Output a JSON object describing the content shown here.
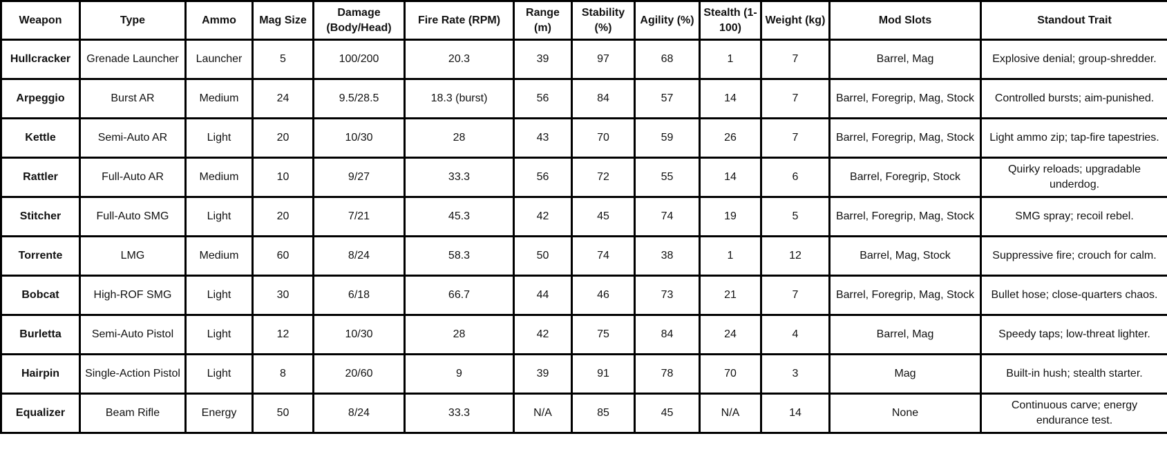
{
  "columns": [
    "Weapon",
    "Type",
    "Ammo",
    "Mag Size",
    "Damage (Body/Head)",
    "Fire Rate (RPM)",
    "Range (m)",
    "Stability (%)",
    "Agility (%)",
    "Stealth (1-100)",
    "Weight (kg)",
    "Mod Slots",
    "Standout Trait"
  ],
  "rows": [
    [
      "Hullcracker",
      "Grenade Launcher",
      "Launcher",
      "5",
      "100/200",
      "20.3",
      "39",
      "97",
      "68",
      "1",
      "7",
      "Barrel, Mag",
      "Explosive denial; group-shredder."
    ],
    [
      "Arpeggio",
      "Burst AR",
      "Medium",
      "24",
      "9.5/28.5",
      "18.3 (burst)",
      "56",
      "84",
      "57",
      "14",
      "7",
      "Barrel, Foregrip, Mag, Stock",
      "Controlled bursts; aim-punished."
    ],
    [
      "Kettle",
      "Semi-Auto AR",
      "Light",
      "20",
      "10/30",
      "28",
      "43",
      "70",
      "59",
      "26",
      "7",
      "Barrel, Foregrip, Mag, Stock",
      "Light ammo zip; tap-fire tapestries."
    ],
    [
      "Rattler",
      "Full-Auto AR",
      "Medium",
      "10",
      "9/27",
      "33.3",
      "56",
      "72",
      "55",
      "14",
      "6",
      "Barrel, Foregrip, Stock",
      "Quirky reloads; upgradable underdog."
    ],
    [
      "Stitcher",
      "Full-Auto SMG",
      "Light",
      "20",
      "7/21",
      "45.3",
      "42",
      "45",
      "74",
      "19",
      "5",
      "Barrel, Foregrip, Mag, Stock",
      "SMG spray; recoil rebel."
    ],
    [
      "Torrente",
      "LMG",
      "Medium",
      "60",
      "8/24",
      "58.3",
      "50",
      "74",
      "38",
      "1",
      "12",
      "Barrel, Mag, Stock",
      "Suppressive fire; crouch for calm."
    ],
    [
      "Bobcat",
      "High-ROF SMG",
      "Light",
      "30",
      "6/18",
      "66.7",
      "44",
      "46",
      "73",
      "21",
      "7",
      "Barrel, Foregrip, Mag, Stock",
      "Bullet hose; close-quarters chaos."
    ],
    [
      "Burletta",
      "Semi-Auto Pistol",
      "Light",
      "12",
      "10/30",
      "28",
      "42",
      "75",
      "84",
      "24",
      "4",
      "Barrel, Mag",
      "Speedy taps; low-threat lighter."
    ],
    [
      "Hairpin",
      "Single-Action Pistol",
      "Light",
      "8",
      "20/60",
      "9",
      "39",
      "91",
      "78",
      "70",
      "3",
      "Mag",
      "Built-in hush; stealth starter."
    ],
    [
      "Equalizer",
      "Beam Rifle",
      "Energy",
      "50",
      "8/24",
      "33.3",
      "N/A",
      "85",
      "45",
      "N/A",
      "14",
      "None",
      "Continuous carve; energy endurance test."
    ]
  ]
}
